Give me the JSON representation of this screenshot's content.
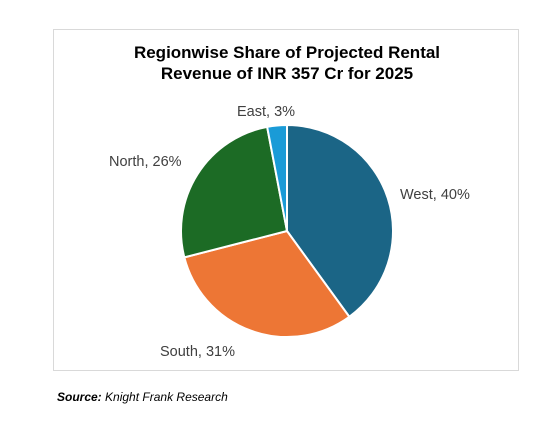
{
  "chart_data": {
    "type": "pie",
    "title_lines": [
      "Regionwise Share of Projected Rental",
      "Revenue of INR 357 Cr for 2025"
    ],
    "categories": [
      "West",
      "South",
      "North",
      "East"
    ],
    "values": [
      40,
      31,
      26,
      3
    ],
    "labels": [
      "West, 40%",
      "South, 31%",
      "North, 26%",
      "East, 3%"
    ],
    "colors": [
      "#1b6586",
      "#ed7635",
      "#1c6b25",
      "#1a9bd7"
    ],
    "start_angle_deg": 0,
    "direction": "clockwise"
  },
  "source": {
    "prefix": "Source:",
    "text": "Knight Frank Research"
  }
}
